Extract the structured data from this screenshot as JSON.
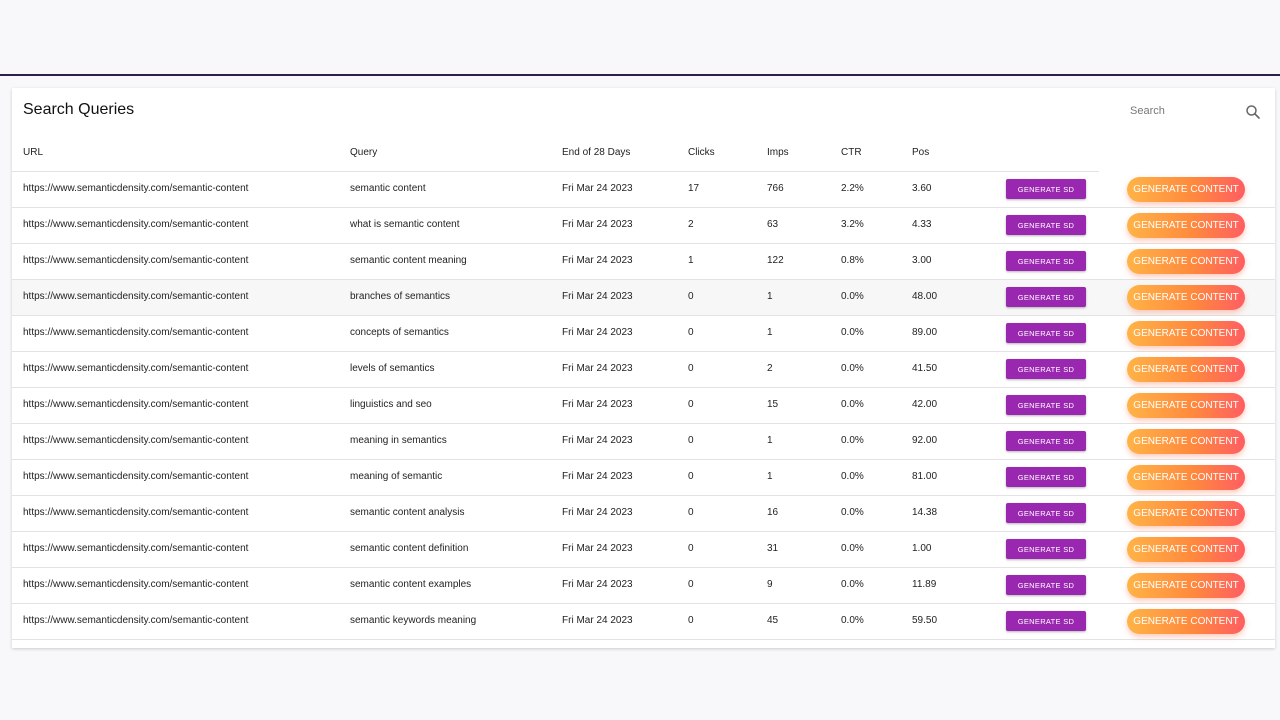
{
  "panel": {
    "title": "Search Queries",
    "search_placeholder": "Search"
  },
  "table": {
    "headers": {
      "url": "URL",
      "query": "Query",
      "date": "End of 28 Days",
      "clicks": "Clicks",
      "imps": "Imps",
      "ctr": "CTR",
      "pos": "Pos"
    },
    "sd_button_label": "GENERATE SD",
    "content_button_label": "GENERATE CONTENT",
    "rows": [
      {
        "url": "https://www.semanticdensity.com/semantic-content",
        "query": "semantic content",
        "date": "Fri Mar 24 2023",
        "clicks": "17",
        "imps": "766",
        "ctr": "2.2%",
        "pos": "3.60"
      },
      {
        "url": "https://www.semanticdensity.com/semantic-content",
        "query": "what is semantic content",
        "date": "Fri Mar 24 2023",
        "clicks": "2",
        "imps": "63",
        "ctr": "3.2%",
        "pos": "4.33"
      },
      {
        "url": "https://www.semanticdensity.com/semantic-content",
        "query": "semantic content meaning",
        "date": "Fri Mar 24 2023",
        "clicks": "1",
        "imps": "122",
        "ctr": "0.8%",
        "pos": "3.00"
      },
      {
        "url": "https://www.semanticdensity.com/semantic-content",
        "query": "branches of semantics",
        "date": "Fri Mar 24 2023",
        "clicks": "0",
        "imps": "1",
        "ctr": "0.0%",
        "pos": "48.00"
      },
      {
        "url": "https://www.semanticdensity.com/semantic-content",
        "query": "concepts of semantics",
        "date": "Fri Mar 24 2023",
        "clicks": "0",
        "imps": "1",
        "ctr": "0.0%",
        "pos": "89.00"
      },
      {
        "url": "https://www.semanticdensity.com/semantic-content",
        "query": "levels of semantics",
        "date": "Fri Mar 24 2023",
        "clicks": "0",
        "imps": "2",
        "ctr": "0.0%",
        "pos": "41.50"
      },
      {
        "url": "https://www.semanticdensity.com/semantic-content",
        "query": "linguistics and seo",
        "date": "Fri Mar 24 2023",
        "clicks": "0",
        "imps": "15",
        "ctr": "0.0%",
        "pos": "42.00"
      },
      {
        "url": "https://www.semanticdensity.com/semantic-content",
        "query": "meaning in semantics",
        "date": "Fri Mar 24 2023",
        "clicks": "0",
        "imps": "1",
        "ctr": "0.0%",
        "pos": "92.00"
      },
      {
        "url": "https://www.semanticdensity.com/semantic-content",
        "query": "meaning of semantic",
        "date": "Fri Mar 24 2023",
        "clicks": "0",
        "imps": "1",
        "ctr": "0.0%",
        "pos": "81.00"
      },
      {
        "url": "https://www.semanticdensity.com/semantic-content",
        "query": "semantic content analysis",
        "date": "Fri Mar 24 2023",
        "clicks": "0",
        "imps": "16",
        "ctr": "0.0%",
        "pos": "14.38"
      },
      {
        "url": "https://www.semanticdensity.com/semantic-content",
        "query": "semantic content definition",
        "date": "Fri Mar 24 2023",
        "clicks": "0",
        "imps": "31",
        "ctr": "0.0%",
        "pos": "1.00"
      },
      {
        "url": "https://www.semanticdensity.com/semantic-content",
        "query": "semantic content examples",
        "date": "Fri Mar 24 2023",
        "clicks": "0",
        "imps": "9",
        "ctr": "0.0%",
        "pos": "11.89"
      },
      {
        "url": "https://www.semanticdensity.com/semantic-content",
        "query": "semantic keywords meaning",
        "date": "Fri Mar 24 2023",
        "clicks": "0",
        "imps": "45",
        "ctr": "0.0%",
        "pos": "59.50"
      }
    ]
  },
  "colors": {
    "sd_button": "#9a27b0",
    "content_button_start": "#ffb347",
    "content_button_end": "#ff5e62",
    "top_border": "#2b2140"
  },
  "icons": {
    "search": "search-icon"
  }
}
